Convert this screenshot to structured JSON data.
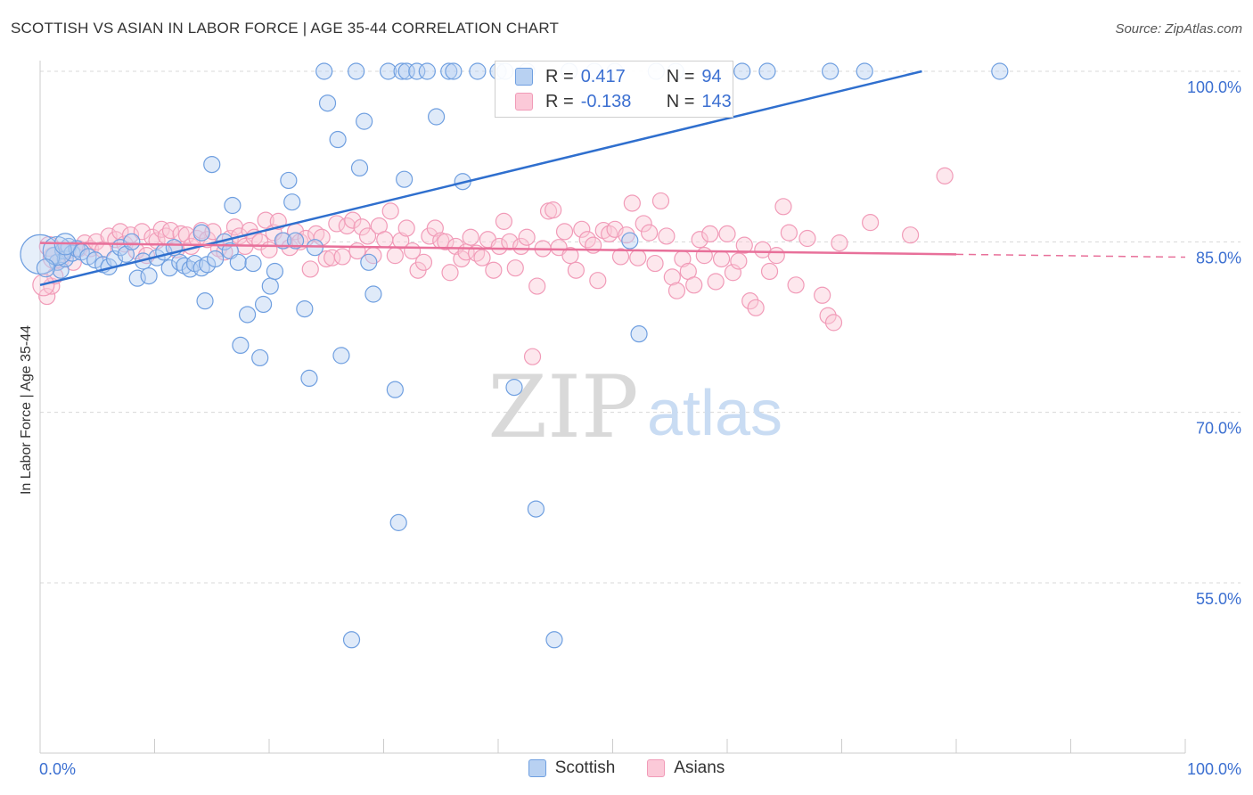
{
  "title": "SCOTTISH VS ASIAN IN LABOR FORCE | AGE 35-44 CORRELATION CHART",
  "source": "Source: ZipAtlas.com",
  "watermark": {
    "zip": "ZIP",
    "atlas": "atlas"
  },
  "colors": {
    "scottish": "#6f9fe0",
    "scottish_line": "#2f6fce",
    "asians": "#f19bb8",
    "asians_line": "#e8709a",
    "tick_text": "#3b6fd1"
  },
  "legend": {
    "scottish": {
      "r_label": "R =",
      "r_value": "0.417",
      "n_label": "N =",
      "n_value": "94"
    },
    "asians": {
      "r_label": "R =",
      "r_value": "-0.138",
      "n_label": "N =",
      "n_value": "143"
    }
  },
  "chart_data": {
    "type": "scatter",
    "title": "SCOTTISH VS ASIAN IN LABOR FORCE | AGE 35-44 CORRELATION CHART",
    "xlabel": "",
    "ylabel": "In Labor Force | Age 35-44",
    "xlim": [
      0,
      100
    ],
    "ylim": [
      41,
      100
    ],
    "x_tick_labels": [
      "0.0%",
      "100.0%"
    ],
    "y_ticks": [
      55,
      70,
      85,
      100
    ],
    "y_tick_labels": [
      "55.0%",
      "70.0%",
      "85.0%",
      "100.0%"
    ],
    "grid": true,
    "legend_position": "top-center",
    "series": [
      {
        "name": "Scottish",
        "trend": {
          "x": [
            0,
            77
          ],
          "y": [
            81.2,
            100
          ]
        },
        "points": [
          [
            1.2,
            83.8
          ],
          [
            1.5,
            83.2
          ],
          [
            1.8,
            82.5
          ],
          [
            2,
            84.2
          ],
          [
            2.2,
            83.5
          ],
          [
            2.5,
            84.6
          ],
          [
            2.8,
            84
          ],
          [
            3.2,
            84.4
          ],
          [
            3.6,
            84.1
          ],
          [
            4.2,
            83.7
          ],
          [
            4.8,
            83.4
          ],
          [
            5.5,
            83
          ],
          [
            6,
            82.8
          ],
          [
            6.5,
            83.5
          ],
          [
            7,
            84.5
          ],
          [
            7.5,
            83.9
          ],
          [
            8,
            85
          ],
          [
            8.5,
            81.8
          ],
          [
            9,
            83.3
          ],
          [
            9.5,
            82
          ],
          [
            10.2,
            83.6
          ],
          [
            10.8,
            84.1
          ],
          [
            11.3,
            82.7
          ],
          [
            11.7,
            84.5
          ],
          [
            12.2,
            83.2
          ],
          [
            12.6,
            82.9
          ],
          [
            13.1,
            82.6
          ],
          [
            13.5,
            83.1
          ],
          [
            14.1,
            82.7
          ],
          [
            14.6,
            83
          ],
          [
            14.1,
            85.8
          ],
          [
            14.4,
            79.8
          ],
          [
            15,
            91.8
          ],
          [
            15.3,
            83.5
          ],
          [
            16.1,
            85
          ],
          [
            16.6,
            84.2
          ],
          [
            16.8,
            88.2
          ],
          [
            17.3,
            83.2
          ],
          [
            17.5,
            75.9
          ],
          [
            18.1,
            78.6
          ],
          [
            18.6,
            83.1
          ],
          [
            19.2,
            74.8
          ],
          [
            19.5,
            79.5
          ],
          [
            20.1,
            81.1
          ],
          [
            20.5,
            82.4
          ],
          [
            21.2,
            85.1
          ],
          [
            21.7,
            90.4
          ],
          [
            22,
            88.5
          ],
          [
            22.3,
            85.1
          ],
          [
            23.1,
            79.1
          ],
          [
            23.5,
            73
          ],
          [
            24,
            84.5
          ],
          [
            24.8,
            100
          ],
          [
            25.1,
            97.2
          ],
          [
            26,
            94
          ],
          [
            26.3,
            75
          ],
          [
            27.2,
            50
          ],
          [
            27.6,
            100
          ],
          [
            27.9,
            91.5
          ],
          [
            28.3,
            95.6
          ],
          [
            28.7,
            83.2
          ],
          [
            29.1,
            80.4
          ],
          [
            30.4,
            100
          ],
          [
            31,
            72
          ],
          [
            31.6,
            100
          ],
          [
            31.3,
            60.3
          ],
          [
            32,
            100
          ],
          [
            31.8,
            90.5
          ],
          [
            32.9,
            100
          ],
          [
            33.8,
            100
          ],
          [
            34.6,
            96
          ],
          [
            35.7,
            100
          ],
          [
            36.1,
            100
          ],
          [
            36.9,
            90.3
          ],
          [
            38.2,
            100
          ],
          [
            40,
            100
          ],
          [
            40.6,
            100
          ],
          [
            41.4,
            72.2
          ],
          [
            42.5,
            100
          ],
          [
            43.3,
            61.5
          ],
          [
            44.9,
            50
          ],
          [
            46.2,
            100
          ],
          [
            48.4,
            100
          ],
          [
            50.2,
            100
          ],
          [
            51.5,
            85.1
          ],
          [
            52.3,
            76.9
          ],
          [
            53.8,
            100
          ],
          [
            55.5,
            100
          ],
          [
            61.3,
            100
          ],
          [
            63.5,
            100
          ],
          [
            69,
            100
          ],
          [
            72,
            100
          ],
          [
            83.8,
            100
          ]
        ]
      },
      {
        "name": "Asians",
        "trend": {
          "x": [
            0,
            80
          ],
          "y": [
            84.9,
            83.9
          ]
        },
        "trend_extension": {
          "x": [
            80,
            100
          ],
          "y": [
            83.9,
            83.65
          ]
        },
        "points": [
          [
            0.6,
            80.2
          ],
          [
            1,
            81.1
          ],
          [
            1.3,
            82
          ],
          [
            1.8,
            83.4
          ],
          [
            2.4,
            84.2
          ],
          [
            2.9,
            83.2
          ],
          [
            3.4,
            84.4
          ],
          [
            3.9,
            84.9
          ],
          [
            4.4,
            84.4
          ],
          [
            4.9,
            85
          ],
          [
            5.5,
            84.3
          ],
          [
            6,
            85.5
          ],
          [
            6.6,
            85.2
          ],
          [
            7,
            85.9
          ],
          [
            7.4,
            84.8
          ],
          [
            7.9,
            85.6
          ],
          [
            8.4,
            84.2
          ],
          [
            8.9,
            85.9
          ],
          [
            9.3,
            83.8
          ],
          [
            9.8,
            85.4
          ],
          [
            10.2,
            85.1
          ],
          [
            10.6,
            86.1
          ],
          [
            11,
            85.5
          ],
          [
            11.4,
            86
          ],
          [
            11.9,
            84.3
          ],
          [
            12.3,
            85.7
          ],
          [
            12.8,
            85.6
          ],
          [
            13.2,
            84.6
          ],
          [
            13.7,
            85.3
          ],
          [
            14.1,
            86
          ],
          [
            14.6,
            85.2
          ],
          [
            15.1,
            85.9
          ],
          [
            15.6,
            84.4
          ],
          [
            16.1,
            84.1
          ],
          [
            16.6,
            85.3
          ],
          [
            17,
            86.3
          ],
          [
            17.4,
            85.5
          ],
          [
            17.9,
            84.6
          ],
          [
            18.3,
            86
          ],
          [
            18.7,
            85.4
          ],
          [
            19.2,
            85
          ],
          [
            19.7,
            86.9
          ],
          [
            20,
            84.3
          ],
          [
            20.4,
            85.8
          ],
          [
            20.8,
            86.8
          ],
          [
            21.3,
            85.1
          ],
          [
            21.8,
            84.5
          ],
          [
            22.3,
            85.9
          ],
          [
            22.7,
            85
          ],
          [
            23.2,
            85.3
          ],
          [
            23.6,
            82.6
          ],
          [
            24.1,
            85.7
          ],
          [
            24.6,
            85.4
          ],
          [
            25,
            83.5
          ],
          [
            25.5,
            83.6
          ],
          [
            25.9,
            86.6
          ],
          [
            26.4,
            83.7
          ],
          [
            26.8,
            86.4
          ],
          [
            27.3,
            86.9
          ],
          [
            27.7,
            84.2
          ],
          [
            28.1,
            86.3
          ],
          [
            28.6,
            85.5
          ],
          [
            29.1,
            83.8
          ],
          [
            29.6,
            86.4
          ],
          [
            30.1,
            85.2
          ],
          [
            30.6,
            87.7
          ],
          [
            31,
            83.8
          ],
          [
            31.5,
            85.1
          ],
          [
            32,
            86.2
          ],
          [
            32.5,
            84.2
          ],
          [
            33,
            82.5
          ],
          [
            33.5,
            83.2
          ],
          [
            34,
            85.5
          ],
          [
            34.5,
            86.2
          ],
          [
            35,
            85.1
          ],
          [
            35.4,
            85
          ],
          [
            35.8,
            82.3
          ],
          [
            36.3,
            84.6
          ],
          [
            36.8,
            83.5
          ],
          [
            37.2,
            84.1
          ],
          [
            37.6,
            85.4
          ],
          [
            38.1,
            84
          ],
          [
            38.6,
            83.6
          ],
          [
            39.1,
            85.2
          ],
          [
            39.6,
            82.5
          ],
          [
            40.1,
            84.6
          ],
          [
            40.5,
            86.8
          ],
          [
            41,
            85
          ],
          [
            41.5,
            82.7
          ],
          [
            42,
            84.6
          ],
          [
            42.5,
            85.4
          ],
          [
            43,
            74.9
          ],
          [
            43.4,
            81.1
          ],
          [
            43.9,
            84.4
          ],
          [
            44.4,
            87.7
          ],
          [
            44.8,
            87.8
          ],
          [
            45.3,
            84.5
          ],
          [
            45.8,
            85.9
          ],
          [
            46.3,
            83.8
          ],
          [
            46.8,
            82.5
          ],
          [
            47.3,
            86.1
          ],
          [
            47.8,
            85.2
          ],
          [
            48.3,
            84.7
          ],
          [
            48.7,
            81.6
          ],
          [
            49.2,
            86
          ],
          [
            49.7,
            85.7
          ],
          [
            50.2,
            86.1
          ],
          [
            50.7,
            83.7
          ],
          [
            51.2,
            85.6
          ],
          [
            51.7,
            88.4
          ],
          [
            52.2,
            83.6
          ],
          [
            52.7,
            86.6
          ],
          [
            53.2,
            85.8
          ],
          [
            53.7,
            83.1
          ],
          [
            54.2,
            88.6
          ],
          [
            54.7,
            85.5
          ],
          [
            55.2,
            81.9
          ],
          [
            55.6,
            80.7
          ],
          [
            56.1,
            83.5
          ],
          [
            56.6,
            82.4
          ],
          [
            57.1,
            81.2
          ],
          [
            57.6,
            85.2
          ],
          [
            58,
            83.8
          ],
          [
            58.5,
            85.7
          ],
          [
            59,
            81.5
          ],
          [
            59.5,
            83.5
          ],
          [
            60,
            85.7
          ],
          [
            60.5,
            82.3
          ],
          [
            61,
            83.3
          ],
          [
            61.5,
            84.7
          ],
          [
            62,
            79.8
          ],
          [
            62.5,
            79.2
          ],
          [
            63.1,
            84.3
          ],
          [
            63.7,
            82.4
          ],
          [
            64.3,
            83.8
          ],
          [
            64.9,
            88.1
          ],
          [
            65.4,
            85.8
          ],
          [
            66,
            81.2
          ],
          [
            67,
            85.3
          ],
          [
            68.3,
            80.3
          ],
          [
            68.8,
            78.5
          ],
          [
            69.3,
            77.9
          ],
          [
            69.8,
            84.9
          ],
          [
            72.5,
            86.7
          ],
          [
            76,
            85.6
          ],
          [
            79,
            90.8
          ]
        ]
      }
    ]
  }
}
